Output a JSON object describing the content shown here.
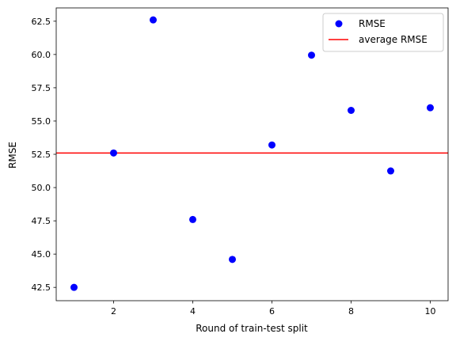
{
  "chart_data": {
    "type": "scatter",
    "title": "",
    "xlabel": "Round of train-test split",
    "ylabel": "RMSE",
    "xlim": [
      0.55,
      10.45
    ],
    "ylim": [
      41.5,
      63.5
    ],
    "grid": false,
    "legend_position": "top-right",
    "x_ticks": [
      2,
      4,
      6,
      8,
      10
    ],
    "y_ticks": [
      42.5,
      45.0,
      47.5,
      50.0,
      52.5,
      55.0,
      57.5,
      60.0,
      62.5
    ],
    "x_tick_labels": [
      "2",
      "4",
      "6",
      "8",
      "10"
    ],
    "y_tick_labels": [
      "42.5",
      "45.0",
      "47.5",
      "50.0",
      "52.5",
      "55.0",
      "57.5",
      "60.0",
      "62.5"
    ],
    "series": [
      {
        "name": "RMSE",
        "kind": "scatter",
        "color": "#0000ff",
        "x": [
          1,
          2,
          3,
          4,
          5,
          6,
          7,
          8,
          9,
          10
        ],
        "y": [
          42.5,
          52.6,
          62.6,
          47.6,
          44.6,
          53.2,
          59.95,
          55.8,
          51.25,
          56.0
        ]
      },
      {
        "name": "average RMSE",
        "kind": "hline",
        "color": "#ff0000",
        "y": 52.6
      }
    ]
  }
}
